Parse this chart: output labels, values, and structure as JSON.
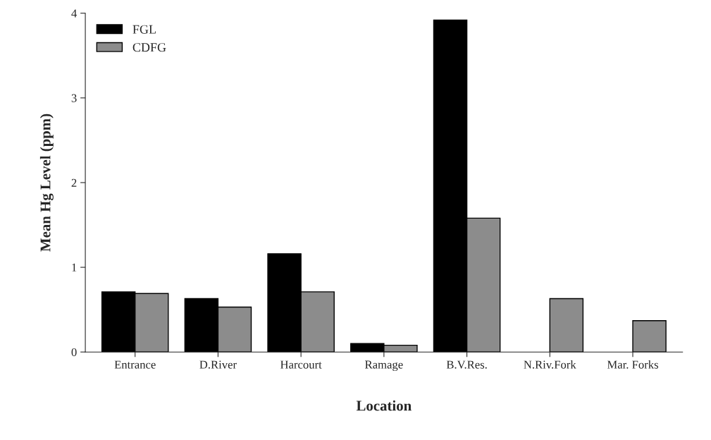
{
  "chart_data": {
    "type": "bar",
    "categories": [
      "Entrance",
      "D.River",
      "Harcourt",
      "Ramage",
      "B.V.Res.",
      "N.Riv.Fork",
      "Mar. Forks"
    ],
    "series": [
      {
        "name": "FGL",
        "color": "#000000",
        "values": [
          0.71,
          0.63,
          1.16,
          0.1,
          3.92,
          null,
          null
        ]
      },
      {
        "name": "CDFG",
        "color": "#8c8c8c",
        "values": [
          0.69,
          0.53,
          0.71,
          0.08,
          1.58,
          0.63,
          0.37
        ]
      }
    ],
    "xlabel": "Location",
    "ylabel": "Mean Hg Level (ppm)",
    "ylim": [
      0,
      4
    ],
    "yticks": [
      0,
      1,
      2,
      3,
      4
    ],
    "grid": false,
    "legend": "top left"
  }
}
